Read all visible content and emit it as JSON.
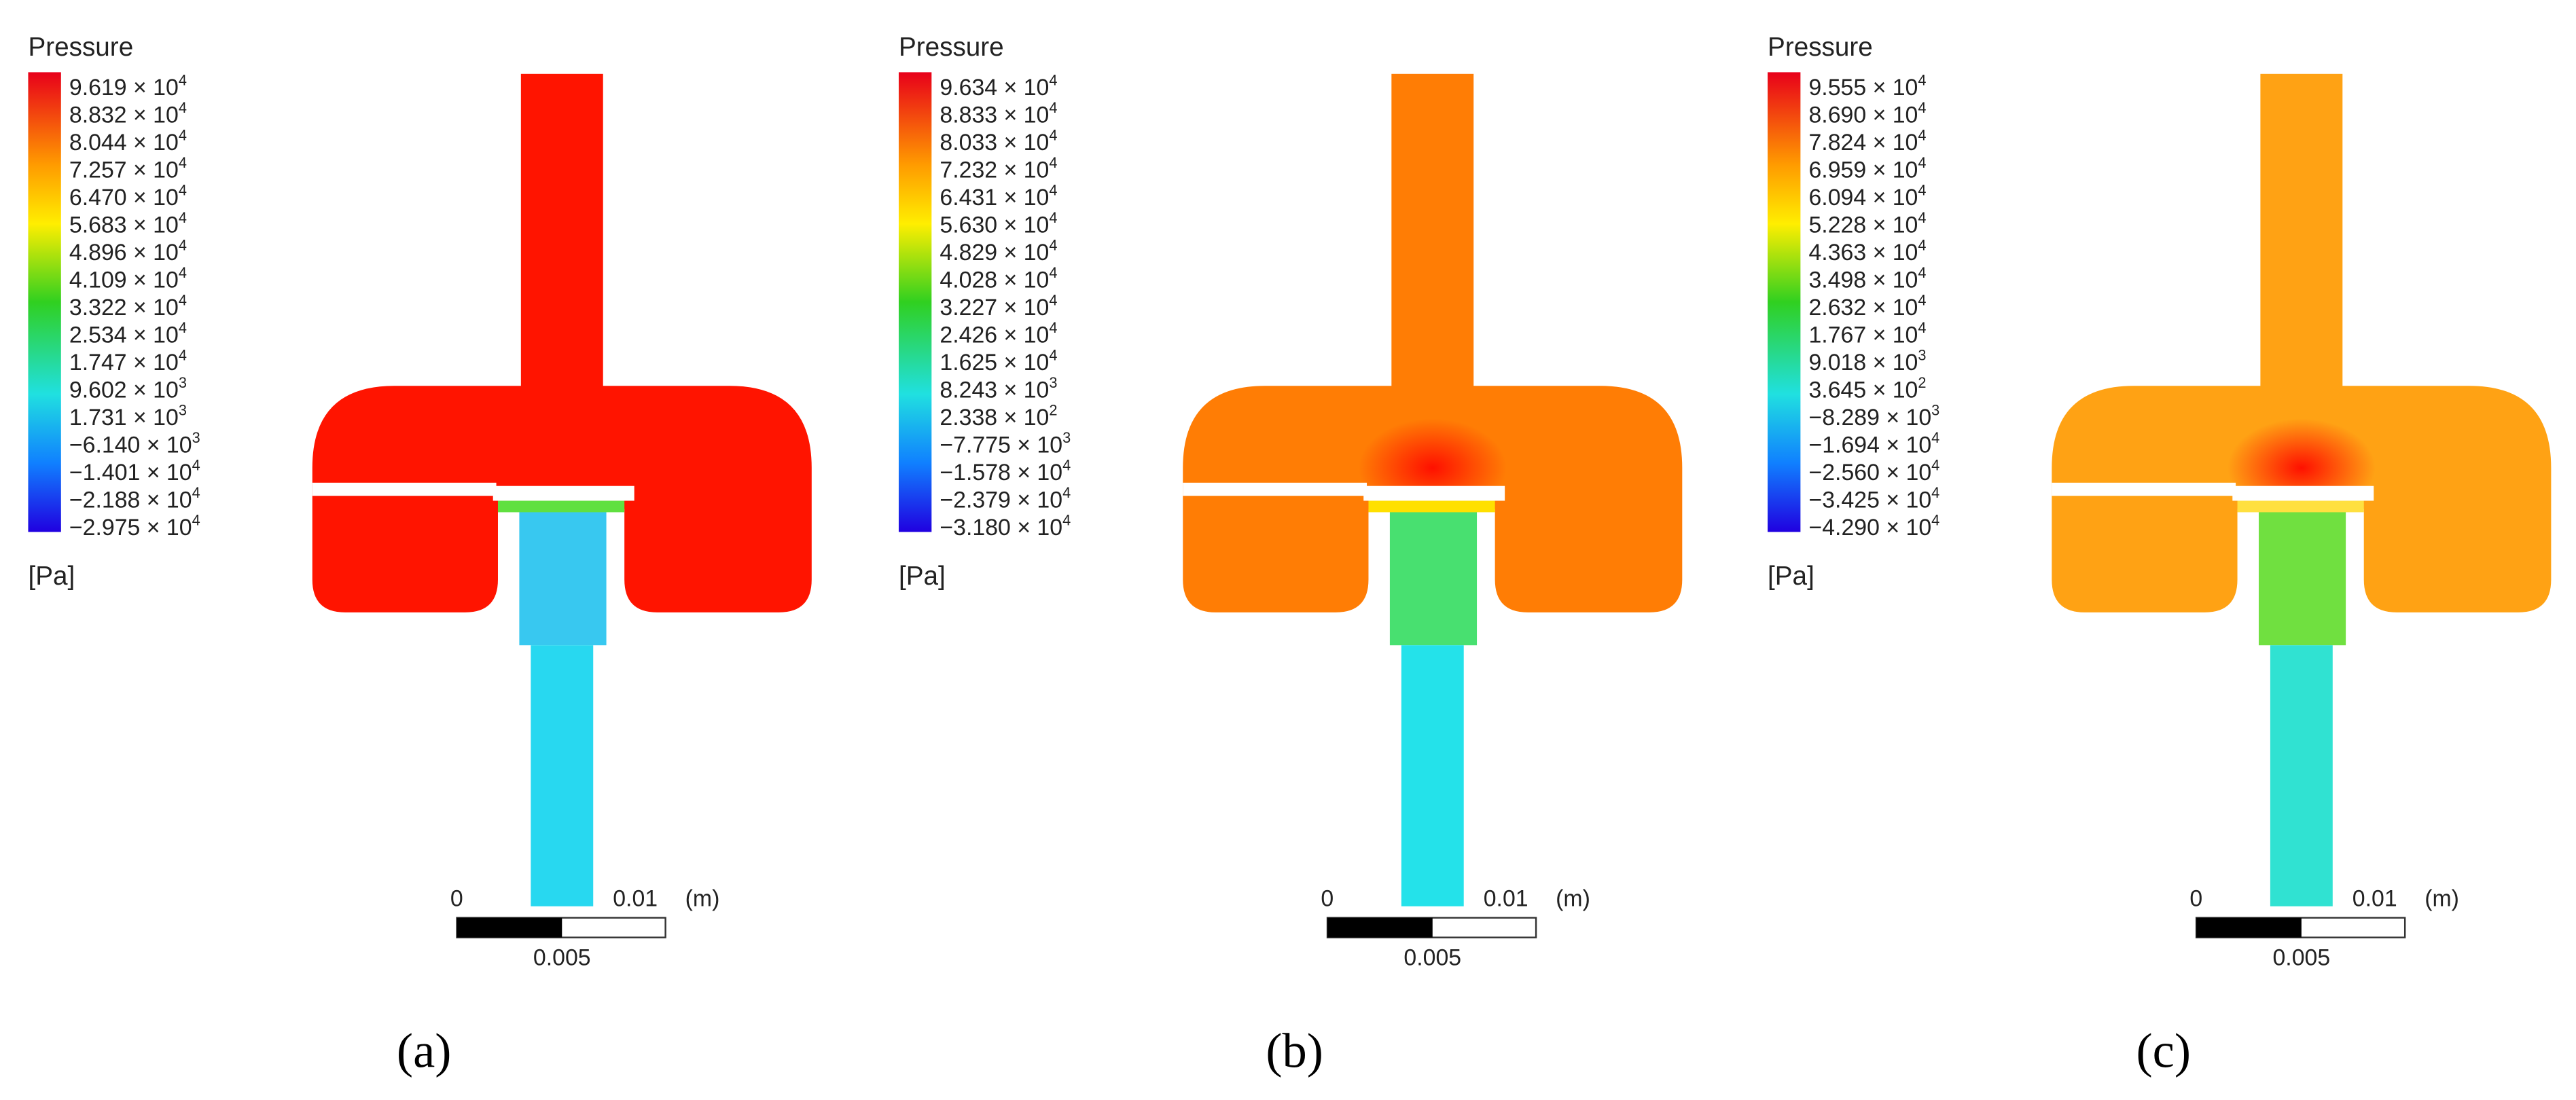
{
  "panels": [
    {
      "legend": {
        "title": "Pressure",
        "unit": "[Pa]",
        "levels": [
          {
            "base": "9.619 × 10",
            "exp": "4"
          },
          {
            "base": "8.832 × 10",
            "exp": "4"
          },
          {
            "base": "8.044 × 10",
            "exp": "4"
          },
          {
            "base": "7.257 × 10",
            "exp": "4"
          },
          {
            "base": "6.470 × 10",
            "exp": "4"
          },
          {
            "base": "5.683 × 10",
            "exp": "4"
          },
          {
            "base": "4.896 × 10",
            "exp": "4"
          },
          {
            "base": "4.109 × 10",
            "exp": "4"
          },
          {
            "base": "3.322 × 10",
            "exp": "4"
          },
          {
            "base": "2.534 × 10",
            "exp": "4"
          },
          {
            "base": "1.747 × 10",
            "exp": "4"
          },
          {
            "base": "9.602 × 10",
            "exp": "3"
          },
          {
            "base": "1.731 × 10",
            "exp": "3"
          },
          {
            "base": "−6.140 × 10",
            "exp": "3"
          },
          {
            "base": "−1.401 × 10",
            "exp": "4"
          },
          {
            "base": "−2.188 × 10",
            "exp": "4"
          },
          {
            "base": "−2.975 × 10",
            "exp": "4"
          }
        ]
      },
      "scale": {
        "start": "0",
        "end": "0.01",
        "unit": "(m)",
        "mid": "0.005"
      },
      "caption": "(a)"
    },
    {
      "legend": {
        "title": "Pressure",
        "unit": "[Pa]",
        "levels": [
          {
            "base": "9.634 × 10",
            "exp": "4"
          },
          {
            "base": "8.833 × 10",
            "exp": "4"
          },
          {
            "base": "8.033 × 10",
            "exp": "4"
          },
          {
            "base": "7.232 × 10",
            "exp": "4"
          },
          {
            "base": "6.431 × 10",
            "exp": "4"
          },
          {
            "base": "5.630 × 10",
            "exp": "4"
          },
          {
            "base": "4.829 × 10",
            "exp": "4"
          },
          {
            "base": "4.028 × 10",
            "exp": "4"
          },
          {
            "base": "3.227 × 10",
            "exp": "4"
          },
          {
            "base": "2.426 × 10",
            "exp": "4"
          },
          {
            "base": "1.625 × 10",
            "exp": "4"
          },
          {
            "base": "8.243 × 10",
            "exp": "3"
          },
          {
            "base": "2.338 × 10",
            "exp": "2"
          },
          {
            "base": "−7.775 × 10",
            "exp": "3"
          },
          {
            "base": "−1.578 × 10",
            "exp": "4"
          },
          {
            "base": "−2.379 × 10",
            "exp": "4"
          },
          {
            "base": "−3.180 × 10",
            "exp": "4"
          }
        ]
      },
      "scale": {
        "start": "0",
        "end": "0.01",
        "unit": "(m)",
        "mid": "0.005"
      },
      "caption": "(b)"
    },
    {
      "legend": {
        "title": "Pressure",
        "unit": "[Pa]",
        "levels": [
          {
            "base": "9.555 × 10",
            "exp": "4"
          },
          {
            "base": "8.690 × 10",
            "exp": "4"
          },
          {
            "base": "7.824 × 10",
            "exp": "4"
          },
          {
            "base": "6.959 × 10",
            "exp": "4"
          },
          {
            "base": "6.094 × 10",
            "exp": "4"
          },
          {
            "base": "5.228 × 10",
            "exp": "4"
          },
          {
            "base": "4.363 × 10",
            "exp": "4"
          },
          {
            "base": "3.498 × 10",
            "exp": "4"
          },
          {
            "base": "2.632 × 10",
            "exp": "4"
          },
          {
            "base": "1.767 × 10",
            "exp": "4"
          },
          {
            "base": "9.018 × 10",
            "exp": "3"
          },
          {
            "base": "3.645 × 10",
            "exp": "2"
          },
          {
            "base": "−8.289 × 10",
            "exp": "3"
          },
          {
            "base": "−1.694 × 10",
            "exp": "4"
          },
          {
            "base": "−2.560 × 10",
            "exp": "4"
          },
          {
            "base": "−3.425 × 10",
            "exp": "4"
          },
          {
            "base": "−4.290 × 10",
            "exp": "4"
          }
        ]
      },
      "scale": {
        "start": "0",
        "end": "0.01",
        "unit": "(m)",
        "mid": "0.005"
      },
      "caption": "(c)"
    }
  ]
}
